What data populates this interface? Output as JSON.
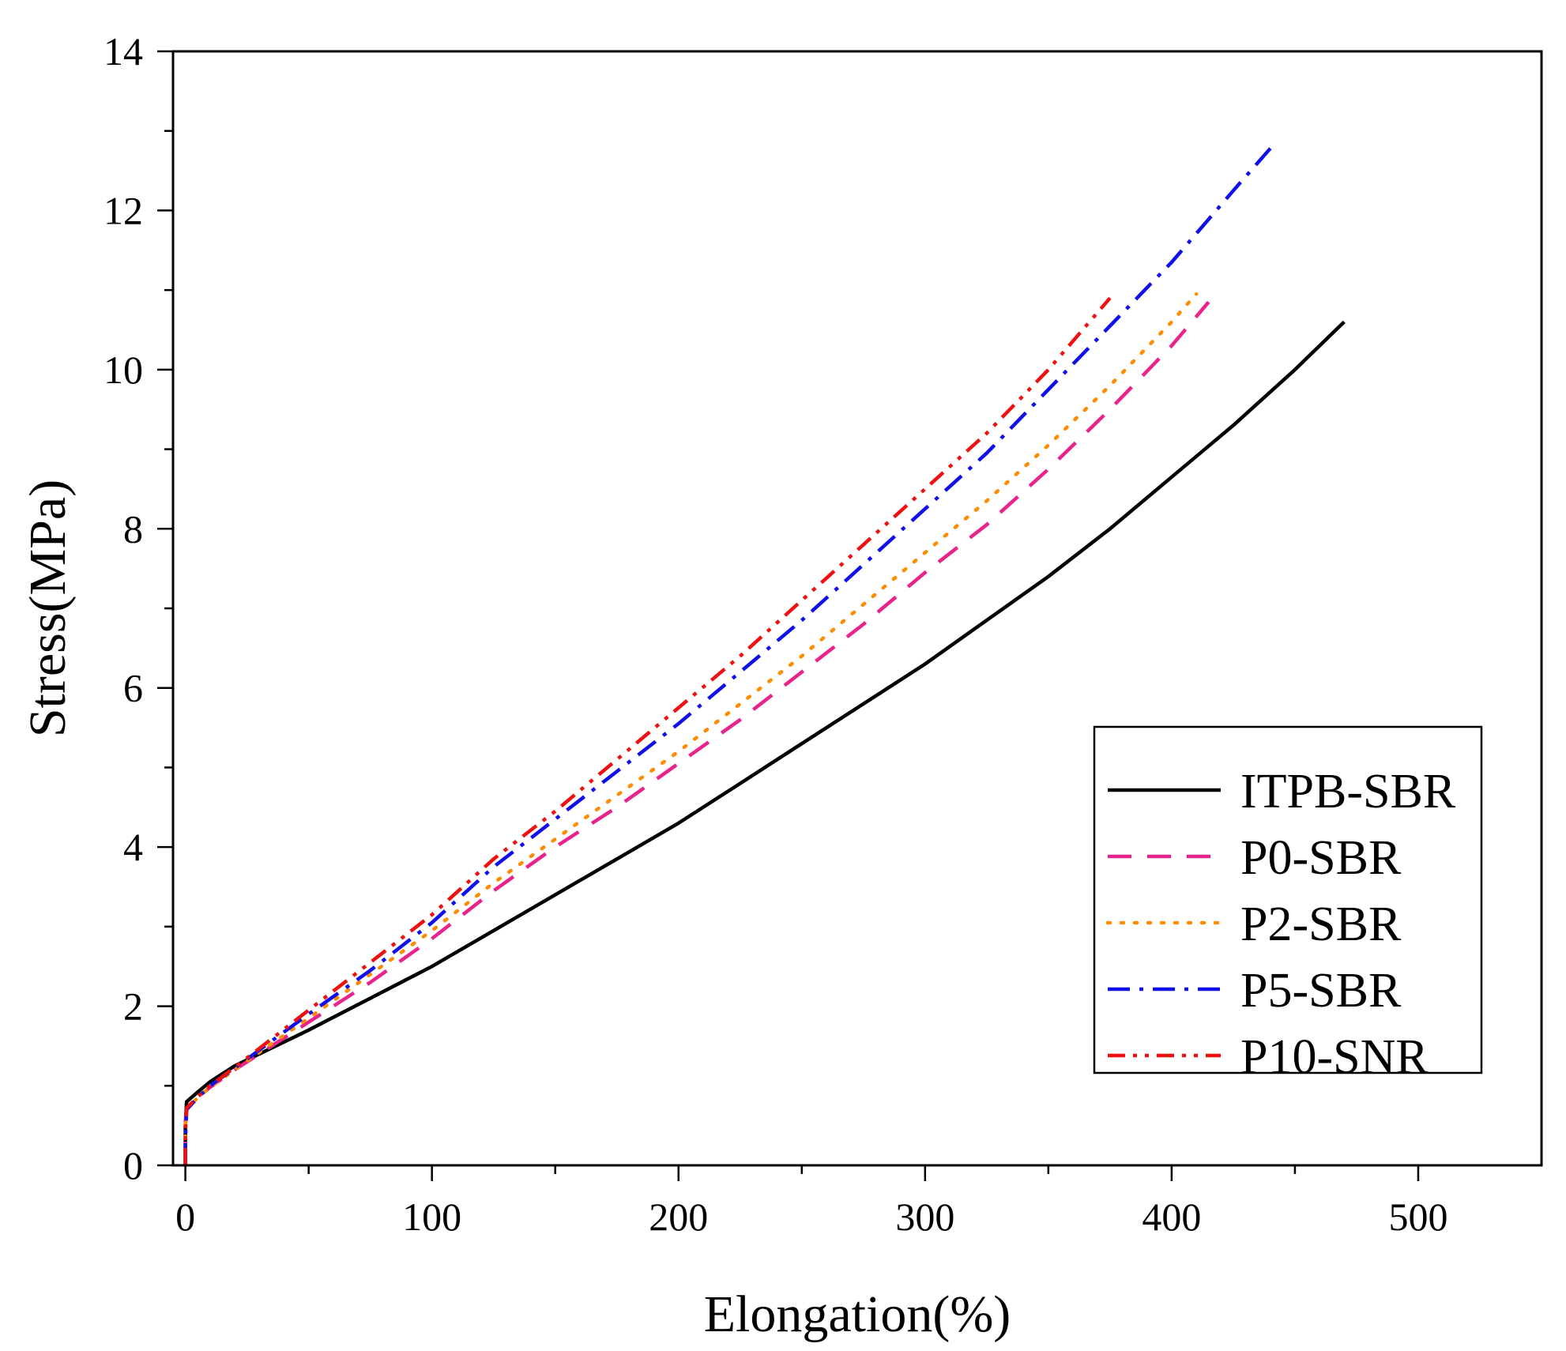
{
  "chart_data": {
    "type": "line",
    "xlabel": "Elongation(%)",
    "ylabel": "Stress(MPa)",
    "xlim": [
      -5,
      550
    ],
    "ylim": [
      0,
      14
    ],
    "x_ticks": [
      0,
      100,
      200,
      300,
      400,
      500
    ],
    "x_minor_ticks": [
      50,
      150,
      250,
      350,
      450
    ],
    "y_ticks": [
      0,
      2,
      4,
      6,
      8,
      10,
      12,
      14
    ],
    "y_minor_ticks": [
      1,
      3,
      5,
      7,
      9,
      11,
      13
    ],
    "legend_position": "right",
    "series": [
      {
        "name": "ITPB-SBR",
        "color": "#000000",
        "dash": "solid",
        "x": [
          0,
          0,
          0.5,
          5,
          10,
          20,
          30,
          50,
          75,
          100,
          125,
          150,
          175,
          200,
          225,
          250,
          275,
          300,
          325,
          350,
          375,
          400,
          425,
          450,
          470
        ],
        "y": [
          0,
          0.5,
          0.8,
          0.92,
          1.05,
          1.25,
          1.4,
          1.7,
          2.1,
          2.5,
          2.95,
          3.4,
          3.85,
          4.3,
          4.8,
          5.3,
          5.8,
          6.3,
          6.85,
          7.4,
          8.0,
          8.65,
          9.3,
          10.0,
          10.6
        ]
      },
      {
        "name": "P0-SBR",
        "color": "#e8238c",
        "dash": "dashed",
        "x": [
          0,
          0,
          0.5,
          5,
          10,
          20,
          30,
          50,
          75,
          100,
          125,
          150,
          175,
          200,
          225,
          250,
          275,
          300,
          325,
          350,
          375,
          400,
          415
        ],
        "y": [
          0,
          0.5,
          0.72,
          0.85,
          0.98,
          1.2,
          1.4,
          1.8,
          2.3,
          2.85,
          3.45,
          4.0,
          4.5,
          5.05,
          5.6,
          6.2,
          6.8,
          7.45,
          8.05,
          8.75,
          9.5,
          10.3,
          10.85
        ]
      },
      {
        "name": "P2-SBR",
        "color": "#ff8c00",
        "dash": "dotted",
        "x": [
          0,
          0,
          0.5,
          5,
          10,
          20,
          30,
          50,
          75,
          100,
          125,
          150,
          175,
          200,
          225,
          250,
          275,
          300,
          325,
          350,
          375,
          400,
          410
        ],
        "y": [
          0,
          0.5,
          0.7,
          0.85,
          0.98,
          1.2,
          1.42,
          1.85,
          2.4,
          2.95,
          3.55,
          4.1,
          4.65,
          5.2,
          5.8,
          6.4,
          7.05,
          7.7,
          8.35,
          9.05,
          9.8,
          10.6,
          10.95
        ]
      },
      {
        "name": "P5-SBR",
        "color": "#1010e8",
        "dash": "dashdot",
        "x": [
          0,
          0,
          0.5,
          5,
          10,
          20,
          30,
          50,
          75,
          100,
          125,
          150,
          175,
          200,
          225,
          250,
          275,
          300,
          325,
          350,
          375,
          400,
          425,
          442
        ],
        "y": [
          0,
          0.3,
          0.7,
          0.85,
          1.0,
          1.22,
          1.45,
          1.9,
          2.45,
          3.05,
          3.75,
          4.35,
          4.95,
          5.55,
          6.2,
          6.85,
          7.55,
          8.25,
          8.95,
          9.75,
          10.55,
          11.35,
          12.25,
          12.85
        ]
      },
      {
        "name": "P10-SNR",
        "color": "#ee1111",
        "dash": "dashdotdot",
        "x": [
          0,
          0,
          0.5,
          5,
          10,
          20,
          30,
          50,
          75,
          100,
          125,
          150,
          175,
          200,
          225,
          250,
          275,
          300,
          325,
          350,
          375
        ],
        "y": [
          0,
          0.4,
          0.72,
          0.86,
          1.0,
          1.23,
          1.47,
          1.95,
          2.55,
          3.15,
          3.85,
          4.45,
          5.1,
          5.75,
          6.4,
          7.1,
          7.8,
          8.5,
          9.2,
          10.0,
          10.9
        ]
      }
    ]
  }
}
